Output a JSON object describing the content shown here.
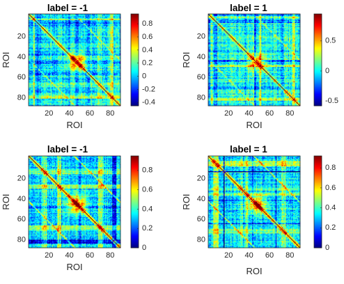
{
  "figure": {
    "type": "heatmap-grid",
    "panels": [
      {
        "title": "label = -1",
        "xlabel": "ROI",
        "ylabel": "ROI",
        "xticks": [
          "20",
          "40",
          "60",
          "80"
        ],
        "yticks": [
          "20",
          "40",
          "60",
          "80"
        ],
        "clim": [
          -0.45,
          0.95
        ],
        "colorbar_ticks": [
          "0.8",
          "0.6",
          "0.4",
          "0.2",
          "0",
          "-0.2",
          "-0.4"
        ],
        "colorbar_tick_values": [
          0.8,
          0.6,
          0.4,
          0.2,
          0,
          -0.2,
          -0.4
        ],
        "seed": 11,
        "base": 0.08,
        "spread": 0.18,
        "blob": 0.7
      },
      {
        "title": "label = 1",
        "xlabel": "ROI",
        "ylabel": "ROI",
        "xticks": [
          "20",
          "40",
          "60",
          "80"
        ],
        "yticks": [
          "20",
          "40",
          "60",
          "80"
        ],
        "clim": [
          -0.58,
          0.95
        ],
        "colorbar_ticks": [
          "0.5",
          "0",
          "-0.5"
        ],
        "colorbar_tick_values": [
          0.5,
          0,
          -0.5
        ],
        "seed": 23,
        "base": 0.05,
        "spread": 0.2,
        "blob": 0.55
      },
      {
        "title": "label = -1",
        "xlabel": "ROI",
        "ylabel": "ROI",
        "xticks": [
          "20",
          "40",
          "60",
          "80"
        ],
        "yticks": [
          "20",
          "40",
          "60",
          "80"
        ],
        "clim": [
          0,
          0.95
        ],
        "colorbar_ticks": [
          "0.8",
          "0.6",
          "0.4",
          "0.2",
          "0"
        ],
        "colorbar_tick_values": [
          0.8,
          0.6,
          0.4,
          0.2,
          0
        ],
        "seed": 37,
        "base": 0.33,
        "spread": 0.12,
        "blob": 0.5
      },
      {
        "title": "label = 1",
        "xlabel": "ROI",
        "ylabel": "ROI",
        "xticks": [
          "20",
          "40",
          "60",
          "80"
        ],
        "yticks": [
          "20",
          "40",
          "60",
          "80"
        ],
        "clim": [
          0,
          0.92
        ],
        "colorbar_ticks": [
          "0.8",
          "0.6",
          "0.4",
          "0.2",
          "0"
        ],
        "colorbar_tick_values": [
          0.8,
          0.6,
          0.4,
          0.2,
          0
        ],
        "seed": 53,
        "base": 0.33,
        "spread": 0.12,
        "blob": 0.45
      }
    ]
  },
  "chart_data": [
    {
      "type": "heatmap",
      "title": "label = -1",
      "xlabel": "ROI",
      "ylabel": "ROI",
      "x_range": [
        1,
        90
      ],
      "y_range": [
        1,
        90
      ],
      "y_axis_direction": "top-to-bottom",
      "color_range": [
        -0.45,
        0.95
      ],
      "colorbar_ticks": [
        -0.4,
        -0.2,
        0,
        0.2,
        0.4,
        0.6,
        0.8
      ],
      "colormap": "jet",
      "notes_visible": "symmetric ROI-by-ROI matrix, diagonal near maximum, strong high-value block around ROI 40-55"
    },
    {
      "type": "heatmap",
      "title": "label = 1",
      "xlabel": "ROI",
      "ylabel": "ROI",
      "x_range": [
        1,
        90
      ],
      "y_range": [
        1,
        90
      ],
      "y_axis_direction": "top-to-bottom",
      "color_range": [
        -0.58,
        0.95
      ],
      "colorbar_ticks": [
        -0.5,
        0,
        0.5
      ],
      "colormap": "jet"
    },
    {
      "type": "heatmap",
      "title": "label = -1",
      "xlabel": "ROI",
      "ylabel": "ROI",
      "x_range": [
        1,
        90
      ],
      "y_range": [
        1,
        90
      ],
      "y_axis_direction": "top-to-bottom",
      "color_range": [
        0,
        0.95
      ],
      "colorbar_ticks": [
        0,
        0.2,
        0.4,
        0.6,
        0.8
      ],
      "colormap": "jet"
    },
    {
      "type": "heatmap",
      "title": "label = 1",
      "xlabel": "ROI",
      "ylabel": "ROI",
      "x_range": [
        1,
        90
      ],
      "y_range": [
        1,
        90
      ],
      "y_axis_direction": "top-to-bottom",
      "color_range": [
        0,
        0.92
      ],
      "colorbar_ticks": [
        0,
        0.2,
        0.4,
        0.6,
        0.8
      ],
      "colormap": "jet"
    }
  ]
}
